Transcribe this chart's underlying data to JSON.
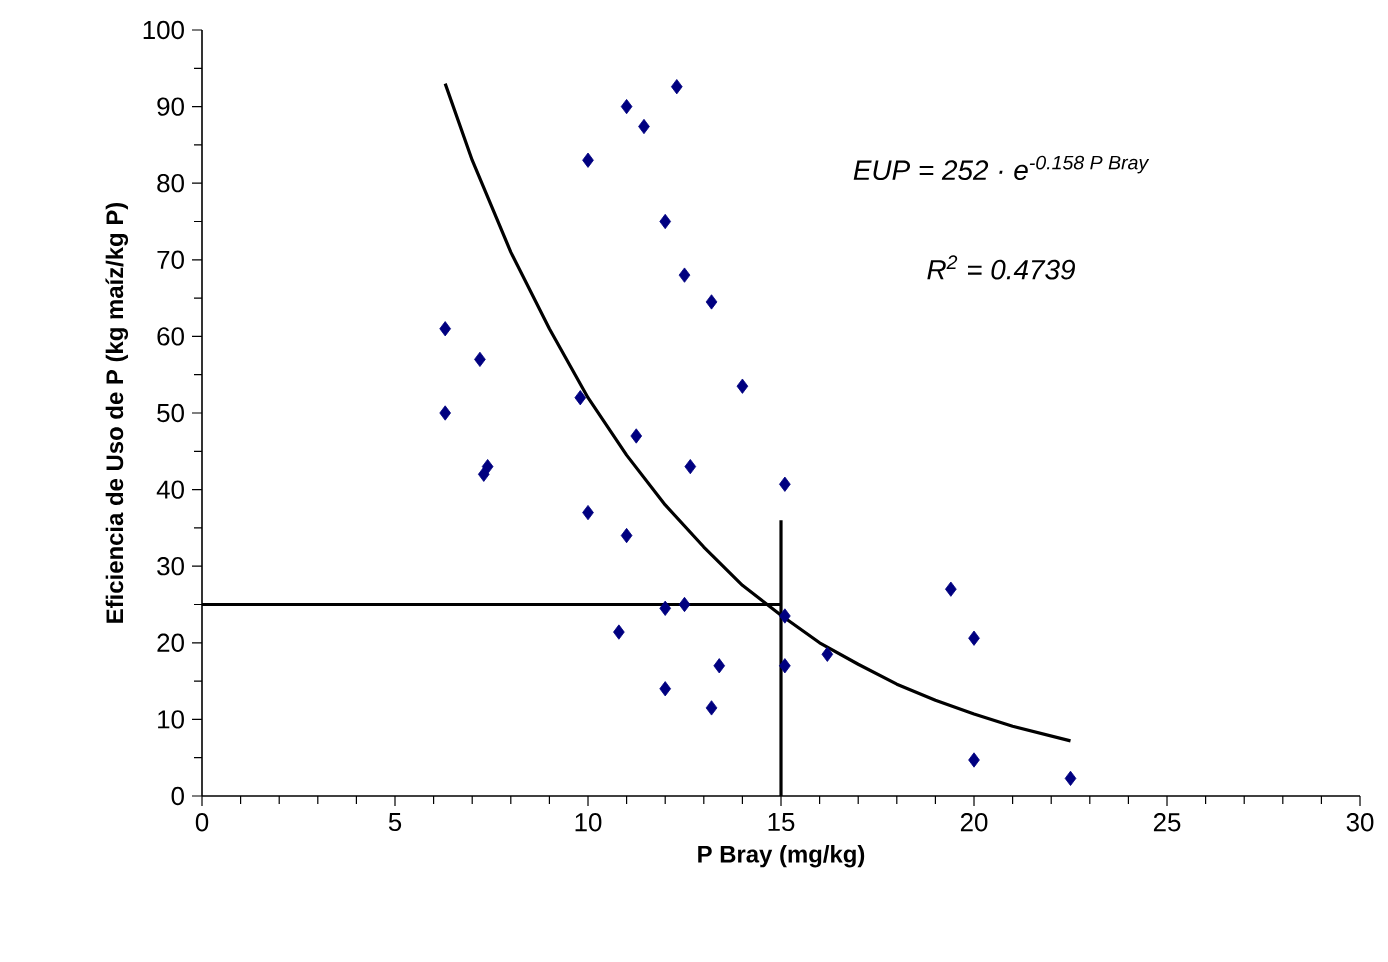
{
  "chart_data": {
    "type": "scatter",
    "xlabel": "P Bray (mg/kg)",
    "ylabel": "Eficiencia de Uso de P (kg maíz/kg P)",
    "xlim": [
      0,
      30
    ],
    "xticks": [
      0,
      5,
      10,
      15,
      20,
      25,
      30
    ],
    "ylim": [
      0,
      100
    ],
    "yticks": [
      0,
      10,
      20,
      30,
      40,
      50,
      60,
      70,
      80,
      90,
      100
    ],
    "grid": false,
    "annotations": [
      "EUP = 252 · e$^{-0.158 P Bray}$",
      "R$^{2}$ = 0.4739"
    ],
    "series": [
      {
        "color": "#000080",
        "marker": "diamond",
        "x": [
          6.3,
          6.3,
          7.2,
          7.3,
          7.4,
          9.8,
          10.0,
          10.0,
          10.8,
          11.0,
          11.25,
          11.0,
          11.45,
          12.0,
          12.0,
          12.0,
          12.3,
          12.5,
          12.5,
          12.65,
          13.2,
          13.2,
          13.4,
          14.0,
          15.1,
          15.1,
          15.1,
          16.2,
          19.4,
          20.0,
          20.0,
          22.5
        ],
        "values": [
          61,
          50,
          57,
          42,
          43,
          52,
          37,
          83,
          21.4,
          34,
          47,
          90,
          87.4,
          14,
          24.5,
          75,
          92.6,
          25,
          68,
          43,
          64.5,
          11.5,
          17,
          53.5,
          40.7,
          17,
          23.5,
          18.5,
          27,
          20.6,
          4.7,
          2.3
        ]
      },
      {
        "type": "line",
        "color": "#000000",
        "marker": "none",
        "x": [
          6.3,
          7,
          8,
          9,
          10,
          11,
          12,
          13,
          14,
          15,
          16,
          17,
          18,
          19,
          20,
          21,
          22.5
        ],
        "values": [
          93,
          83,
          71,
          61,
          52,
          44.5,
          38,
          32.5,
          27.5,
          23.6,
          20,
          17.2,
          14.6,
          12.5,
          10.7,
          9.1,
          7.2
        ]
      },
      {
        "type": "line",
        "color": "#000000",
        "marker": "none",
        "x": [
          0,
          15
        ],
        "values": [
          25,
          25
        ]
      },
      {
        "type": "line",
        "color": "#000000",
        "marker": "none",
        "x": [
          15,
          15
        ],
        "values": [
          36,
          0
        ]
      }
    ]
  }
}
